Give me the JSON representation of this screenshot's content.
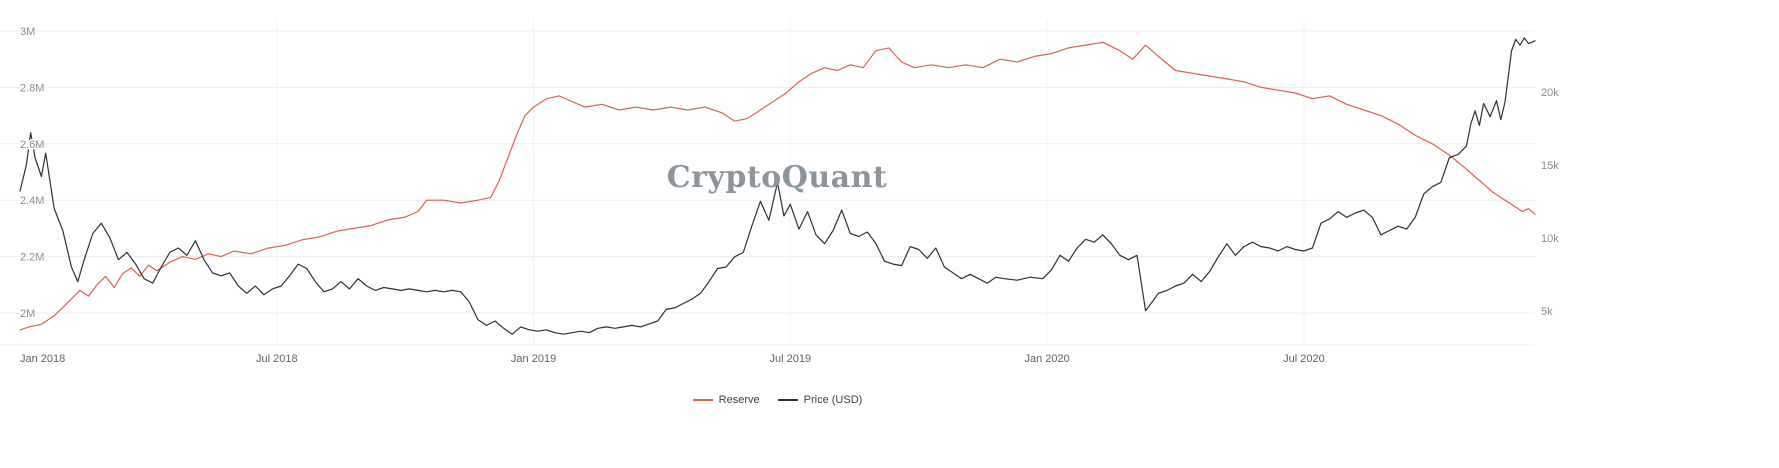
{
  "colors": {
    "background": "#ffffff",
    "grid": "#ececec",
    "grid_vertical": "#f2f2f2",
    "axis_label": "#8c8c8c",
    "x_label": "#616161",
    "watermark": "#8c959b",
    "reserve_line": "#e0604d",
    "price_line": "#2b3137"
  },
  "chart_data": {
    "type": "line",
    "watermark": "CryptoQuant",
    "x_unit": "months_since_Jan_2018",
    "x_axis": {
      "min": 0,
      "max": 35.4,
      "ticks": [
        {
          "v": 0,
          "label": "Jan 2018"
        },
        {
          "v": 6,
          "label": "Jul 2018"
        },
        {
          "v": 12,
          "label": "Jan 2019"
        },
        {
          "v": 18,
          "label": "Jul 2019"
        },
        {
          "v": 24,
          "label": "Jan 2020"
        },
        {
          "v": 30,
          "label": "Jul 2020"
        }
      ]
    },
    "y_axis_left": {
      "unit": "M",
      "min": 2.0,
      "max": 3.0,
      "ticks": [
        {
          "v": 2,
          "label": "2M"
        },
        {
          "v": 2.2,
          "label": "2.2M"
        },
        {
          "v": 2.4,
          "label": "2.4M"
        },
        {
          "v": 2.6,
          "label": "2.6M"
        },
        {
          "v": 2.8,
          "label": "2.8M"
        },
        {
          "v": 3,
          "label": "3M"
        }
      ]
    },
    "y_axis_right": {
      "unit": "k",
      "min": 4.85,
      "max": 24.17,
      "ticks": [
        {
          "v": 5,
          "label": "5k"
        },
        {
          "v": 10,
          "label": "10k"
        },
        {
          "v": 15,
          "label": "15k"
        },
        {
          "v": 20,
          "label": "20k"
        }
      ]
    },
    "series": [
      {
        "name": "Reserve",
        "color": "#e0604d",
        "axis": "left",
        "points": [
          [
            0,
            1.94
          ],
          [
            0.2,
            1.95
          ],
          [
            0.5,
            1.96
          ],
          [
            0.8,
            1.99
          ],
          [
            1,
            2.02
          ],
          [
            1.2,
            2.05
          ],
          [
            1.4,
            2.08
          ],
          [
            1.6,
            2.06
          ],
          [
            1.8,
            2.1
          ],
          [
            2,
            2.13
          ],
          [
            2.2,
            2.09
          ],
          [
            2.4,
            2.14
          ],
          [
            2.6,
            2.16
          ],
          [
            2.8,
            2.13
          ],
          [
            3,
            2.17
          ],
          [
            3.2,
            2.15
          ],
          [
            3.5,
            2.18
          ],
          [
            3.8,
            2.2
          ],
          [
            4.1,
            2.19
          ],
          [
            4.4,
            2.21
          ],
          [
            4.7,
            2.2
          ],
          [
            5,
            2.22
          ],
          [
            5.4,
            2.21
          ],
          [
            5.8,
            2.23
          ],
          [
            6.2,
            2.24
          ],
          [
            6.6,
            2.26
          ],
          [
            7,
            2.27
          ],
          [
            7.4,
            2.29
          ],
          [
            7.8,
            2.3
          ],
          [
            8.2,
            2.31
          ],
          [
            8.6,
            2.33
          ],
          [
            9,
            2.34
          ],
          [
            9.3,
            2.36
          ],
          [
            9.5,
            2.4
          ],
          [
            9.9,
            2.4
          ],
          [
            10.3,
            2.39
          ],
          [
            10.7,
            2.4
          ],
          [
            11,
            2.41
          ],
          [
            11.2,
            2.47
          ],
          [
            11.4,
            2.55
          ],
          [
            11.6,
            2.63
          ],
          [
            11.8,
            2.7
          ],
          [
            12,
            2.73
          ],
          [
            12.3,
            2.76
          ],
          [
            12.6,
            2.77
          ],
          [
            12.9,
            2.75
          ],
          [
            13.2,
            2.73
          ],
          [
            13.6,
            2.74
          ],
          [
            14,
            2.72
          ],
          [
            14.4,
            2.73
          ],
          [
            14.8,
            2.72
          ],
          [
            15.2,
            2.73
          ],
          [
            15.6,
            2.72
          ],
          [
            16,
            2.73
          ],
          [
            16.4,
            2.71
          ],
          [
            16.7,
            2.68
          ],
          [
            17,
            2.69
          ],
          [
            17.3,
            2.72
          ],
          [
            17.6,
            2.75
          ],
          [
            17.9,
            2.78
          ],
          [
            18.2,
            2.82
          ],
          [
            18.5,
            2.85
          ],
          [
            18.8,
            2.87
          ],
          [
            19.1,
            2.86
          ],
          [
            19.4,
            2.88
          ],
          [
            19.7,
            2.87
          ],
          [
            20,
            2.93
          ],
          [
            20.3,
            2.94
          ],
          [
            20.6,
            2.89
          ],
          [
            20.9,
            2.87
          ],
          [
            21.3,
            2.88
          ],
          [
            21.7,
            2.87
          ],
          [
            22.1,
            2.88
          ],
          [
            22.5,
            2.87
          ],
          [
            22.9,
            2.9
          ],
          [
            23.3,
            2.89
          ],
          [
            23.7,
            2.91
          ],
          [
            24.1,
            2.92
          ],
          [
            24.5,
            2.94
          ],
          [
            24.9,
            2.95
          ],
          [
            25.3,
            2.96
          ],
          [
            25.7,
            2.93
          ],
          [
            26,
            2.9
          ],
          [
            26.3,
            2.95
          ],
          [
            26.6,
            2.91
          ],
          [
            27,
            2.86
          ],
          [
            27.4,
            2.85
          ],
          [
            27.8,
            2.84
          ],
          [
            28.2,
            2.83
          ],
          [
            28.6,
            2.82
          ],
          [
            29,
            2.8
          ],
          [
            29.4,
            2.79
          ],
          [
            29.8,
            2.78
          ],
          [
            30.2,
            2.76
          ],
          [
            30.6,
            2.77
          ],
          [
            31,
            2.74
          ],
          [
            31.4,
            2.72
          ],
          [
            31.8,
            2.7
          ],
          [
            32.2,
            2.67
          ],
          [
            32.6,
            2.63
          ],
          [
            33,
            2.6
          ],
          [
            33.4,
            2.56
          ],
          [
            33.8,
            2.51
          ],
          [
            34.1,
            2.47
          ],
          [
            34.4,
            2.43
          ],
          [
            34.7,
            2.4
          ],
          [
            34.9,
            2.38
          ],
          [
            35.1,
            2.36
          ],
          [
            35.25,
            2.37
          ],
          [
            35.4,
            2.35
          ]
        ]
      },
      {
        "name": "Price (USD)",
        "color": "#2b3137",
        "axis": "right",
        "points": [
          [
            0,
            13.2
          ],
          [
            0.15,
            15
          ],
          [
            0.25,
            17.2
          ],
          [
            0.35,
            15.5
          ],
          [
            0.5,
            14.2
          ],
          [
            0.6,
            15.8
          ],
          [
            0.8,
            12
          ],
          [
            1,
            10.5
          ],
          [
            1.2,
            8
          ],
          [
            1.35,
            7
          ],
          [
            1.5,
            8.5
          ],
          [
            1.7,
            10.3
          ],
          [
            1.9,
            11
          ],
          [
            2.1,
            10
          ],
          [
            2.3,
            8.5
          ],
          [
            2.5,
            9
          ],
          [
            2.7,
            8.2
          ],
          [
            2.9,
            7.2
          ],
          [
            3.1,
            6.9
          ],
          [
            3.3,
            8
          ],
          [
            3.5,
            9
          ],
          [
            3.7,
            9.3
          ],
          [
            3.9,
            8.8
          ],
          [
            4.1,
            9.8
          ],
          [
            4.3,
            8.5
          ],
          [
            4.5,
            7.6
          ],
          [
            4.7,
            7.4
          ],
          [
            4.9,
            7.6
          ],
          [
            5.1,
            6.7
          ],
          [
            5.3,
            6.2
          ],
          [
            5.5,
            6.7
          ],
          [
            5.7,
            6.1
          ],
          [
            5.9,
            6.5
          ],
          [
            6.1,
            6.7
          ],
          [
            6.3,
            7.4
          ],
          [
            6.5,
            8.2
          ],
          [
            6.7,
            7.9
          ],
          [
            6.9,
            7
          ],
          [
            7.1,
            6.3
          ],
          [
            7.3,
            6.5
          ],
          [
            7.5,
            7
          ],
          [
            7.7,
            6.5
          ],
          [
            7.9,
            7.2
          ],
          [
            8.1,
            6.7
          ],
          [
            8.3,
            6.4
          ],
          [
            8.5,
            6.6
          ],
          [
            8.7,
            6.5
          ],
          [
            8.9,
            6.4
          ],
          [
            9.1,
            6.5
          ],
          [
            9.3,
            6.4
          ],
          [
            9.5,
            6.3
          ],
          [
            9.7,
            6.4
          ],
          [
            9.9,
            6.3
          ],
          [
            10.1,
            6.4
          ],
          [
            10.3,
            6.3
          ],
          [
            10.5,
            5.6
          ],
          [
            10.7,
            4.4
          ],
          [
            10.9,
            4
          ],
          [
            11.1,
            4.3
          ],
          [
            11.3,
            3.8
          ],
          [
            11.5,
            3.4
          ],
          [
            11.7,
            3.9
          ],
          [
            11.9,
            3.7
          ],
          [
            12.1,
            3.6
          ],
          [
            12.3,
            3.7
          ],
          [
            12.5,
            3.5
          ],
          [
            12.7,
            3.4
          ],
          [
            12.9,
            3.5
          ],
          [
            13.1,
            3.6
          ],
          [
            13.3,
            3.5
          ],
          [
            13.5,
            3.8
          ],
          [
            13.7,
            3.9
          ],
          [
            13.9,
            3.8
          ],
          [
            14.1,
            3.9
          ],
          [
            14.3,
            4
          ],
          [
            14.5,
            3.9
          ],
          [
            14.7,
            4.1
          ],
          [
            14.9,
            4.3
          ],
          [
            15.1,
            5.1
          ],
          [
            15.3,
            5.2
          ],
          [
            15.5,
            5.5
          ],
          [
            15.7,
            5.8
          ],
          [
            15.9,
            6.2
          ],
          [
            16.1,
            7
          ],
          [
            16.3,
            7.9
          ],
          [
            16.5,
            8
          ],
          [
            16.7,
            8.7
          ],
          [
            16.9,
            9
          ],
          [
            17.1,
            10.8
          ],
          [
            17.3,
            12.5
          ],
          [
            17.5,
            11.2
          ],
          [
            17.7,
            13.8
          ],
          [
            17.85,
            11.5
          ],
          [
            18,
            12.3
          ],
          [
            18.2,
            10.6
          ],
          [
            18.4,
            11.8
          ],
          [
            18.6,
            10.2
          ],
          [
            18.8,
            9.6
          ],
          [
            19,
            10.5
          ],
          [
            19.2,
            11.9
          ],
          [
            19.4,
            10.3
          ],
          [
            19.6,
            10.1
          ],
          [
            19.8,
            10.4
          ],
          [
            20,
            9.6
          ],
          [
            20.2,
            8.4
          ],
          [
            20.4,
            8.2
          ],
          [
            20.6,
            8.1
          ],
          [
            20.8,
            9.4
          ],
          [
            21,
            9.2
          ],
          [
            21.2,
            8.6
          ],
          [
            21.4,
            9.3
          ],
          [
            21.6,
            8
          ],
          [
            21.8,
            7.6
          ],
          [
            22,
            7.2
          ],
          [
            22.2,
            7.5
          ],
          [
            22.4,
            7.2
          ],
          [
            22.6,
            6.9
          ],
          [
            22.8,
            7.3
          ],
          [
            23,
            7.2
          ],
          [
            23.3,
            7.1
          ],
          [
            23.6,
            7.3
          ],
          [
            23.9,
            7.2
          ],
          [
            24.1,
            7.8
          ],
          [
            24.3,
            8.8
          ],
          [
            24.5,
            8.4
          ],
          [
            24.7,
            9.3
          ],
          [
            24.9,
            9.9
          ],
          [
            25.1,
            9.7
          ],
          [
            25.3,
            10.2
          ],
          [
            25.5,
            9.6
          ],
          [
            25.7,
            8.8
          ],
          [
            25.9,
            8.5
          ],
          [
            26.1,
            8.8
          ],
          [
            26.3,
            5
          ],
          [
            26.45,
            5.6
          ],
          [
            26.6,
            6.2
          ],
          [
            26.8,
            6.4
          ],
          [
            27,
            6.7
          ],
          [
            27.2,
            6.9
          ],
          [
            27.4,
            7.5
          ],
          [
            27.6,
            7
          ],
          [
            27.8,
            7.7
          ],
          [
            28,
            8.7
          ],
          [
            28.2,
            9.6
          ],
          [
            28.4,
            8.8
          ],
          [
            28.6,
            9.4
          ],
          [
            28.8,
            9.7
          ],
          [
            29,
            9.4
          ],
          [
            29.2,
            9.3
          ],
          [
            29.4,
            9.1
          ],
          [
            29.6,
            9.4
          ],
          [
            29.8,
            9.2
          ],
          [
            30,
            9.1
          ],
          [
            30.2,
            9.3
          ],
          [
            30.4,
            11
          ],
          [
            30.6,
            11.3
          ],
          [
            30.8,
            11.8
          ],
          [
            31,
            11.4
          ],
          [
            31.2,
            11.7
          ],
          [
            31.4,
            11.9
          ],
          [
            31.6,
            11.4
          ],
          [
            31.8,
            10.2
          ],
          [
            32,
            10.5
          ],
          [
            32.2,
            10.8
          ],
          [
            32.4,
            10.6
          ],
          [
            32.6,
            11.4
          ],
          [
            32.8,
            13
          ],
          [
            33,
            13.5
          ],
          [
            33.2,
            13.8
          ],
          [
            33.4,
            15.5
          ],
          [
            33.6,
            15.7
          ],
          [
            33.8,
            16.3
          ],
          [
            33.9,
            17.8
          ],
          [
            34,
            18.7
          ],
          [
            34.1,
            17.7
          ],
          [
            34.2,
            19.2
          ],
          [
            34.35,
            18.3
          ],
          [
            34.5,
            19.4
          ],
          [
            34.6,
            18.1
          ],
          [
            34.7,
            19.3
          ],
          [
            34.85,
            22.8
          ],
          [
            34.95,
            23.6
          ],
          [
            35.05,
            23.2
          ],
          [
            35.15,
            23.7
          ],
          [
            35.25,
            23.3
          ],
          [
            35.4,
            23.5
          ]
        ]
      }
    ],
    "legend": [
      {
        "label": "Reserve",
        "color": "#e0604d"
      },
      {
        "label": "Price (USD)",
        "color": "#2b3137"
      }
    ]
  }
}
